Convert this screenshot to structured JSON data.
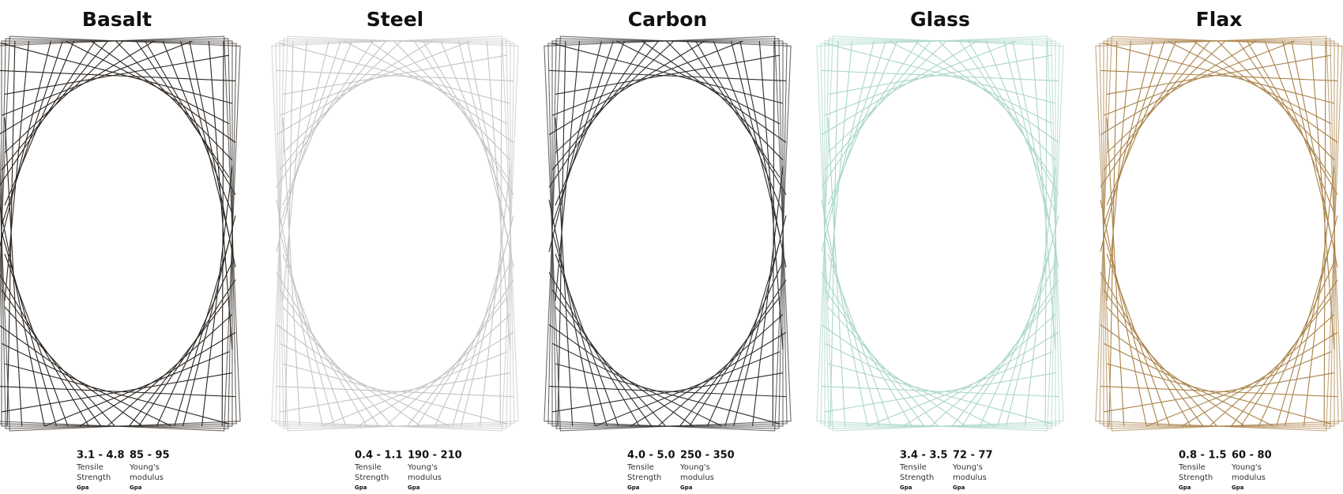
{
  "panels": [
    {
      "title": "Basalt",
      "tensile": {
        "value": "3.1 - 4.8",
        "label": [
          "Tensile",
          "Strength"
        ],
        "unit": "Gpa"
      },
      "modulus": {
        "value": "85 - 95",
        "label": [
          "Young's",
          "modulus"
        ],
        "unit": "Gpa"
      }
    },
    {
      "title": "Steel",
      "tensile": {
        "value": "0.4 - 1.1",
        "label": [
          "Tensile",
          "Strength"
        ],
        "unit": "Gpa"
      },
      "modulus": {
        "value": "190 - 210",
        "label": [
          "Young's",
          "modulus"
        ],
        "unit": "Gpa"
      }
    },
    {
      "title": "Carbon",
      "tensile": {
        "value": "4.0 - 5.0",
        "label": [
          "Tensile",
          "Strength"
        ],
        "unit": "Gpa"
      },
      "modulus": {
        "value": "250 - 350",
        "label": [
          "Young's",
          "modulus"
        ],
        "unit": "Gpa"
      }
    },
    {
      "title": "Glass",
      "tensile": {
        "value": "3.4 - 3.5",
        "label": [
          "Tensile",
          "Strength"
        ],
        "unit": "Gpa"
      },
      "modulus": {
        "value": "72 - 77",
        "label": [
          "Young's",
          "modulus"
        ],
        "unit": "Gpa"
      }
    },
    {
      "title": "Flax",
      "tensile": {
        "value": "0.8 - 1.5",
        "label": [
          "Tensile",
          "Strength"
        ],
        "unit": "Gpa"
      },
      "modulus": {
        "value": "60 - 80",
        "label": [
          "Young's",
          "modulus"
        ],
        "unit": "Gpa"
      }
    }
  ]
}
